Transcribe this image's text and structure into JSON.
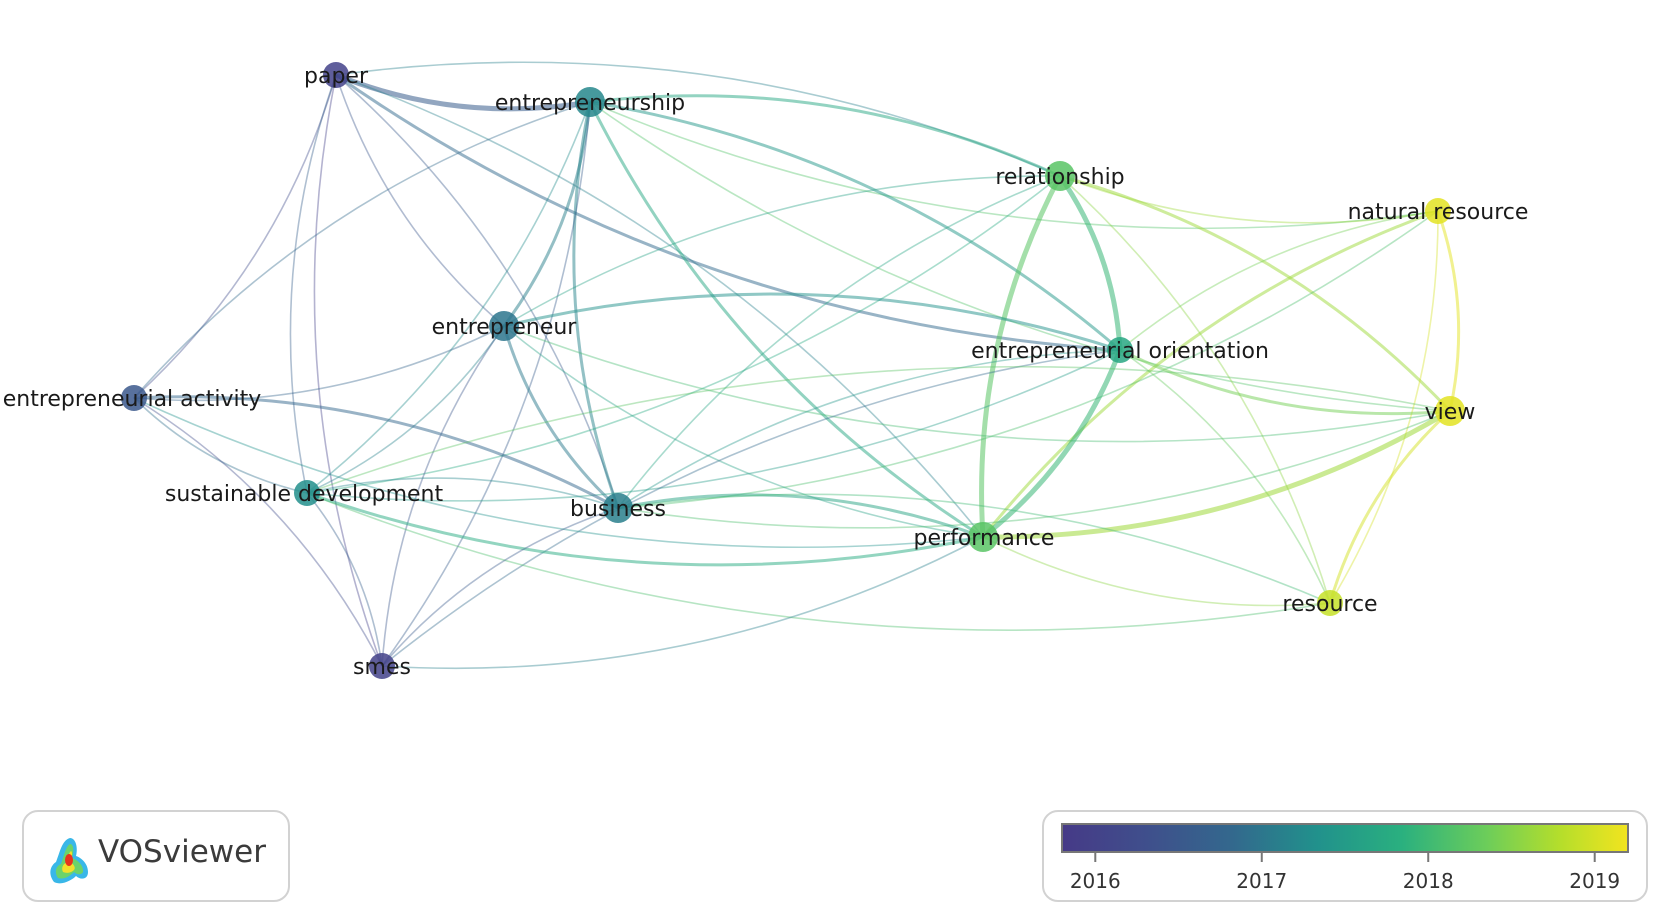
{
  "app": {
    "name": "VOSviewer"
  },
  "nodes": [
    {
      "id": "paper",
      "label": "paper",
      "year": 2016.0,
      "weight": 2
    },
    {
      "id": "entrepreneurship",
      "label": "entrepreneurship",
      "year": 2017.2,
      "weight": 3
    },
    {
      "id": "relationship",
      "label": "relationship",
      "year": 2018.2,
      "weight": 3
    },
    {
      "id": "natural-resource",
      "label": "natural resource",
      "year": 2019.1,
      "weight": 2
    },
    {
      "id": "entrepreneur",
      "label": "entrepreneur",
      "year": 2017.0,
      "weight": 3
    },
    {
      "id": "entrepreneurial-orientation",
      "label": "entrepreneurial orientation",
      "year": 2017.7,
      "weight": 2
    },
    {
      "id": "entrepreneurial-activity",
      "label": "entrepreneurial activity",
      "year": 2016.5,
      "weight": 2
    },
    {
      "id": "view",
      "label": "view",
      "year": 2019.1,
      "weight": 3
    },
    {
      "id": "sustainable-development",
      "label": "sustainable development",
      "year": 2017.3,
      "weight": 2
    },
    {
      "id": "business",
      "label": "business",
      "year": 2017.1,
      "weight": 3
    },
    {
      "id": "performance",
      "label": "performance",
      "year": 2018.2,
      "weight": 3
    },
    {
      "id": "resource",
      "label": "resource",
      "year": 2018.9,
      "weight": 2
    },
    {
      "id": "smes",
      "label": "smes",
      "year": 2016.0,
      "weight": 2
    }
  ],
  "links": [
    [
      "paper",
      "entrepreneurship",
      3
    ],
    [
      "paper",
      "relationship",
      1
    ],
    [
      "paper",
      "entrepreneur",
      1
    ],
    [
      "paper",
      "business",
      1
    ],
    [
      "paper",
      "smes",
      1
    ],
    [
      "paper",
      "entrepreneurial-activity",
      1
    ],
    [
      "paper",
      "sustainable-development",
      1
    ],
    [
      "paper",
      "performance",
      1
    ],
    [
      "paper",
      "entrepreneurial-orientation",
      2
    ],
    [
      "entrepreneurship",
      "entrepreneur",
      2
    ],
    [
      "entrepreneurship",
      "business",
      2
    ],
    [
      "entrepreneurship",
      "relationship",
      2
    ],
    [
      "entrepreneurship",
      "natural-resource",
      1
    ],
    [
      "entrepreneurship",
      "entrepreneurial-orientation",
      2
    ],
    [
      "entrepreneurship",
      "performance",
      2
    ],
    [
      "entrepreneurship",
      "sustainable-development",
      1
    ],
    [
      "entrepreneurship",
      "entrepreneurial-activity",
      1
    ],
    [
      "entrepreneurship",
      "smes",
      1
    ],
    [
      "entrepreneurship",
      "view",
      1
    ],
    [
      "relationship",
      "entrepreneurial-orientation",
      3
    ],
    [
      "relationship",
      "performance",
      3
    ],
    [
      "relationship",
      "view",
      2
    ],
    [
      "relationship",
      "natural-resource",
      1
    ],
    [
      "relationship",
      "resource",
      1
    ],
    [
      "relationship",
      "business",
      1
    ],
    [
      "relationship",
      "sustainable-development",
      1
    ],
    [
      "relationship",
      "entrepreneur",
      1
    ],
    [
      "natural-resource",
      "view",
      2
    ],
    [
      "natural-resource",
      "performance",
      2
    ],
    [
      "natural-resource",
      "resource",
      1
    ],
    [
      "natural-resource",
      "entrepreneurial-orientation",
      1
    ],
    [
      "natural-resource",
      "business",
      1
    ],
    [
      "entrepreneur",
      "business",
      2
    ],
    [
      "entrepreneur",
      "entrepreneurial-orientation",
      2
    ],
    [
      "entrepreneur",
      "performance",
      1
    ],
    [
      "entrepreneur",
      "sustainable-development",
      1
    ],
    [
      "entrepreneur",
      "smes",
      1
    ],
    [
      "entrepreneur",
      "entrepreneurial-activity",
      1
    ],
    [
      "entrepreneur",
      "view",
      1
    ],
    [
      "entrepreneurial-orientation",
      "performance",
      3
    ],
    [
      "entrepreneurial-orientation",
      "view",
      2
    ],
    [
      "entrepreneurial-orientation",
      "resource",
      1
    ],
    [
      "entrepreneurial-orientation",
      "business",
      1
    ],
    [
      "entrepreneurial-orientation",
      "sustainable-development",
      1
    ],
    [
      "entrepreneurial-orientation",
      "smes",
      1
    ],
    [
      "entrepreneurial-activity",
      "business",
      2
    ],
    [
      "entrepreneurial-activity",
      "sustainable-development",
      1
    ],
    [
      "entrepreneurial-activity",
      "smes",
      1
    ],
    [
      "entrepreneurial-activity",
      "performance",
      1
    ],
    [
      "view",
      "performance",
      3
    ],
    [
      "view",
      "resource",
      2
    ],
    [
      "view",
      "business",
      1
    ],
    [
      "view",
      "sustainable-development",
      1
    ],
    [
      "sustainable-development",
      "business",
      1
    ],
    [
      "sustainable-development",
      "performance",
      2
    ],
    [
      "sustainable-development",
      "smes",
      1
    ],
    [
      "sustainable-development",
      "resource",
      1
    ],
    [
      "business",
      "performance",
      2
    ],
    [
      "business",
      "smes",
      1
    ],
    [
      "business",
      "resource",
      1
    ],
    [
      "performance",
      "resource",
      1
    ],
    [
      "performance",
      "smes",
      1
    ]
  ],
  "legend": {
    "ticks": [
      "2016",
      "2017",
      "2018",
      "2019"
    ],
    "min": 2015.8,
    "max": 2019.2
  }
}
